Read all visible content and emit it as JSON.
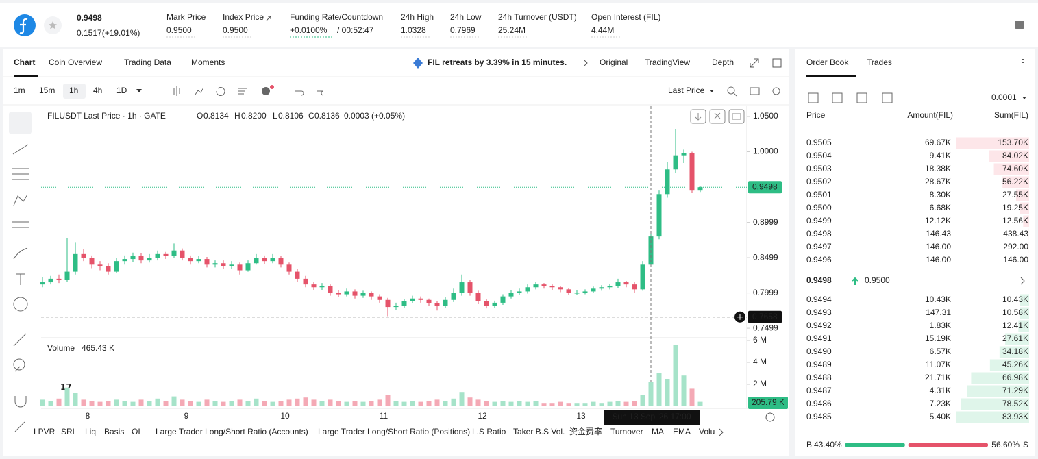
{
  "header": {
    "price": "0.9498",
    "change": "0.1517(+19.01%)",
    "stats": [
      {
        "label": "Mark Price",
        "value": "0.9500"
      },
      {
        "label": "Index Price",
        "value": "0.9500"
      },
      {
        "label": "Funding Rate/Countdown",
        "value": "+0.0100%",
        "extra": "/ 00:52:47"
      },
      {
        "label": "24h High",
        "value": "1.0328"
      },
      {
        "label": "24h Low",
        "value": "0.7969"
      },
      {
        "label": "24h Turnover (USDT)",
        "value": "25.24M"
      },
      {
        "label": "Open Interest (FIL)",
        "value": "4.44M"
      }
    ]
  },
  "chart_tabs": [
    "Chart",
    "Coin Overview",
    "Trading Data",
    "Moments"
  ],
  "news": "FIL retreats by 3.39% in 15 minutes.",
  "view_tabs": [
    "Original",
    "TradingView",
    "Depth"
  ],
  "intervals": [
    "1m",
    "15m",
    "1h",
    "4h",
    "1D"
  ],
  "price_type": "Last Price",
  "legend": {
    "symbol": "FILUSDT Last Price · 1h · GATE",
    "ohlc": [
      [
        "O",
        "0.8134"
      ],
      [
        "H",
        "0.8200"
      ],
      [
        "L",
        "0.8106"
      ],
      [
        "C",
        "0.8136"
      ]
    ],
    "change": "0.0003 (+0.05%)"
  },
  "chart_data": {
    "type": "candlestick",
    "up_color": "#2ebd85",
    "down_color": "#e5536a",
    "candles": [
      [
        0.812,
        0.822,
        0.808,
        0.815
      ],
      [
        0.815,
        0.824,
        0.812,
        0.82
      ],
      [
        0.82,
        0.826,
        0.814,
        0.818
      ],
      [
        0.818,
        0.878,
        0.816,
        0.83
      ],
      [
        0.83,
        0.872,
        0.826,
        0.855
      ],
      [
        0.855,
        0.862,
        0.845,
        0.85
      ],
      [
        0.85,
        0.853,
        0.835,
        0.84
      ],
      [
        0.84,
        0.845,
        0.832,
        0.838
      ],
      [
        0.838,
        0.842,
        0.826,
        0.83
      ],
      [
        0.83,
        0.85,
        0.828,
        0.845
      ],
      [
        0.845,
        0.853,
        0.84,
        0.848
      ],
      [
        0.848,
        0.857,
        0.844,
        0.852
      ],
      [
        0.852,
        0.856,
        0.842,
        0.846
      ],
      [
        0.846,
        0.855,
        0.843,
        0.85
      ],
      [
        0.85,
        0.86,
        0.846,
        0.855
      ],
      [
        0.855,
        0.858,
        0.848,
        0.852
      ],
      [
        0.852,
        0.87,
        0.85,
        0.86
      ],
      [
        0.86,
        0.863,
        0.846,
        0.85
      ],
      [
        0.85,
        0.853,
        0.84,
        0.845
      ],
      [
        0.845,
        0.852,
        0.842,
        0.848
      ],
      [
        0.848,
        0.851,
        0.836,
        0.84
      ],
      [
        0.84,
        0.846,
        0.836,
        0.842
      ],
      [
        0.842,
        0.846,
        0.834,
        0.838
      ],
      [
        0.838,
        0.845,
        0.834,
        0.84
      ],
      [
        0.84,
        0.843,
        0.826,
        0.832
      ],
      [
        0.832,
        0.846,
        0.83,
        0.842
      ],
      [
        0.842,
        0.855,
        0.84,
        0.85
      ],
      [
        0.85,
        0.853,
        0.841,
        0.845
      ],
      [
        0.845,
        0.855,
        0.842,
        0.85
      ],
      [
        0.85,
        0.852,
        0.836,
        0.84
      ],
      [
        0.84,
        0.843,
        0.826,
        0.83
      ],
      [
        0.83,
        0.834,
        0.816,
        0.82
      ],
      [
        0.82,
        0.824,
        0.808,
        0.812
      ],
      [
        0.812,
        0.816,
        0.804,
        0.808
      ],
      [
        0.808,
        0.814,
        0.804,
        0.81
      ],
      [
        0.81,
        0.812,
        0.796,
        0.8
      ],
      [
        0.8,
        0.804,
        0.794,
        0.798
      ],
      [
        0.798,
        0.806,
        0.795,
        0.802
      ],
      [
        0.802,
        0.805,
        0.792,
        0.796
      ],
      [
        0.796,
        0.803,
        0.793,
        0.8
      ],
      [
        0.8,
        0.802,
        0.79,
        0.795
      ],
      [
        0.795,
        0.798,
        0.786,
        0.79
      ],
      [
        0.79,
        0.793,
        0.767,
        0.78
      ],
      [
        0.78,
        0.786,
        0.776,
        0.782
      ],
      [
        0.782,
        0.791,
        0.779,
        0.788
      ],
      [
        0.788,
        0.796,
        0.785,
        0.792
      ],
      [
        0.792,
        0.795,
        0.786,
        0.79
      ],
      [
        0.79,
        0.792,
        0.781,
        0.785
      ],
      [
        0.785,
        0.788,
        0.775,
        0.782
      ],
      [
        0.782,
        0.794,
        0.779,
        0.79
      ],
      [
        0.79,
        0.806,
        0.787,
        0.8
      ],
      [
        0.8,
        0.826,
        0.796,
        0.815
      ],
      [
        0.815,
        0.818,
        0.796,
        0.8
      ],
      [
        0.8,
        0.803,
        0.784,
        0.788
      ],
      [
        0.788,
        0.791,
        0.778,
        0.782
      ],
      [
        0.782,
        0.789,
        0.779,
        0.786
      ],
      [
        0.786,
        0.798,
        0.783,
        0.795
      ],
      [
        0.795,
        0.804,
        0.792,
        0.8
      ],
      [
        0.8,
        0.806,
        0.797,
        0.802
      ],
      [
        0.802,
        0.812,
        0.799,
        0.808
      ],
      [
        0.808,
        0.815,
        0.805,
        0.812
      ],
      [
        0.812,
        0.814,
        0.806,
        0.81
      ],
      [
        0.81,
        0.812,
        0.804,
        0.808
      ],
      [
        0.808,
        0.81,
        0.801,
        0.805
      ],
      [
        0.805,
        0.807,
        0.797,
        0.8
      ],
      [
        0.8,
        0.804,
        0.797,
        0.8
      ],
      [
        0.8,
        0.805,
        0.798,
        0.802
      ],
      [
        0.802,
        0.809,
        0.8,
        0.806
      ],
      [
        0.806,
        0.811,
        0.803,
        0.808
      ],
      [
        0.808,
        0.813,
        0.805,
        0.81
      ],
      [
        0.81,
        0.82,
        0.807,
        0.815
      ],
      [
        0.815,
        0.817,
        0.808,
        0.812
      ],
      [
        0.812,
        0.815,
        0.8,
        0.805
      ],
      [
        0.805,
        0.845,
        0.803,
        0.84
      ],
      [
        0.84,
        0.886,
        0.837,
        0.88
      ],
      [
        0.88,
        0.945,
        0.876,
        0.94
      ],
      [
        0.94,
        0.985,
        0.935,
        0.975
      ],
      [
        0.975,
        1.032,
        0.97,
        0.995
      ],
      [
        0.995,
        1.003,
        0.984,
        0.998
      ],
      [
        0.998,
        1,
        0.942,
        0.945
      ],
      [
        0.945,
        0.952,
        0.943,
        0.9498
      ]
    ],
    "ylim": [
      0.7393,
      1.0646
    ],
    "yticks": [
      {
        "value": 1.05,
        "label": "1.0500"
      },
      {
        "value": 1,
        "label": "1.0000"
      },
      {
        "value": 0.8999,
        "label": "0.8999"
      },
      {
        "value": 0.8499,
        "label": "0.8499"
      },
      {
        "value": 0.7999,
        "label": "0.7999"
      },
      {
        "value": 0.7499,
        "label": "0.7499"
      }
    ],
    "last_price": {
      "value": 0.9498,
      "label": "0.9498"
    },
    "crosshair": {
      "value": 0.7658,
      "label": "0.7658"
    },
    "crosshair_time": "Sun 13 Sep '26   17:00",
    "x_tick_labels": [
      "8",
      "9",
      "10",
      "11",
      "12",
      "13"
    ],
    "volume": {
      "name": "Volume",
      "last": "465.43 K",
      "current": "205.79 K",
      "values": [
        0.6,
        0.5,
        0.7,
        1.7,
        1.2,
        0.6,
        0.5,
        0.4,
        0.5,
        0.6,
        0.5,
        0.4,
        0.6,
        0.5,
        0.7,
        0.5,
        0.9,
        0.6,
        0.5,
        0.4,
        0.6,
        0.5,
        0.4,
        0.5,
        0.6,
        0.5,
        0.7,
        0.5,
        0.4,
        0.5,
        0.6,
        0.7,
        0.8,
        0.6,
        0.5,
        0.6,
        0.5,
        0.4,
        0.5,
        0.4,
        0.5,
        0.6,
        1.0,
        0.5,
        0.4,
        0.5,
        0.4,
        0.5,
        0.6,
        0.5,
        0.7,
        1.3,
        0.8,
        0.6,
        0.5,
        0.4,
        0.5,
        0.4,
        0.5,
        0.4,
        0.5,
        0.3,
        0.3,
        0.4,
        0.3,
        0.3,
        0.3,
        0.4,
        0.3,
        0.4,
        0.5,
        0.4,
        0.5,
        1.0,
        2.2,
        3.0,
        2.5,
        5.6,
        2.8,
        1.6,
        0.4
      ],
      "ylim": [
        0,
        6.25
      ],
      "yticks": [
        {
          "value": 6,
          "label": "6 M"
        },
        {
          "value": 4,
          "label": "4 M"
        },
        {
          "value": 2,
          "label": "2 M"
        }
      ]
    }
  },
  "indicators": [
    "LPVR",
    "SRL",
    "Liq",
    "Basis",
    "OI",
    "Large Trader Long/Short Ratio (Accounts)",
    "Large Trader Long/Short Ratio (Positions)",
    "L.S Ratio",
    "Taker B.S Vol.",
    "资金费率",
    "Turnover",
    "MA",
    "EMA",
    "Volu"
  ],
  "order_book": {
    "tabs": [
      "Order Book",
      "Trades"
    ],
    "precision": "0.0001",
    "columns": [
      "Price",
      "Amount(FIL)",
      "Sum(FIL)"
    ],
    "asks": {
      "prices": [
        "0.9505",
        "0.9504",
        "0.9503",
        "0.9502",
        "0.9501",
        "0.9500",
        "0.9499",
        "0.9498",
        "0.9497",
        "0.9496"
      ],
      "amounts": [
        "69.67K",
        "9.41K",
        "18.38K",
        "28.67K",
        "8.30K",
        "6.68K",
        "12.12K",
        "146.43",
        "146.00",
        "146.00"
      ],
      "sums": [
        153700,
        84020,
        74600,
        56220,
        27550,
        19250,
        12560,
        438.43,
        292,
        146
      ],
      "sum_labels": [
        "153.70K",
        "84.02K",
        "74.60K",
        "56.22K",
        "27.55K",
        "19.25K",
        "12.56K",
        "438.43",
        "292.00",
        "146.00"
      ]
    },
    "mid": {
      "price": "0.9498",
      "mark": "0.9500"
    },
    "bids": {
      "prices": [
        "0.9494",
        "0.9493",
        "0.9492",
        "0.9491",
        "0.9490",
        "0.9489",
        "0.9488",
        "0.9487",
        "0.9486",
        "0.9485"
      ],
      "amounts": [
        "10.43K",
        "147.31",
        "1.83K",
        "15.19K",
        "6.57K",
        "11.07K",
        "21.71K",
        "4.31K",
        "7.23K",
        "5.40K"
      ],
      "sums": [
        10430,
        10580,
        12410,
        27610,
        34180,
        45260,
        66980,
        71290,
        78520,
        83930
      ],
      "sum_labels": [
        "10.43K",
        "10.58K",
        "12.41K",
        "27.61K",
        "34.18K",
        "45.26K",
        "66.98K",
        "71.29K",
        "78.52K",
        "83.93K"
      ]
    },
    "ratio": {
      "buy_tag": "B",
      "buy": 43.4,
      "buy_label": "43.40%",
      "sell": 56.6,
      "sell_label": "56.60%",
      "sell_tag": "S"
    }
  }
}
